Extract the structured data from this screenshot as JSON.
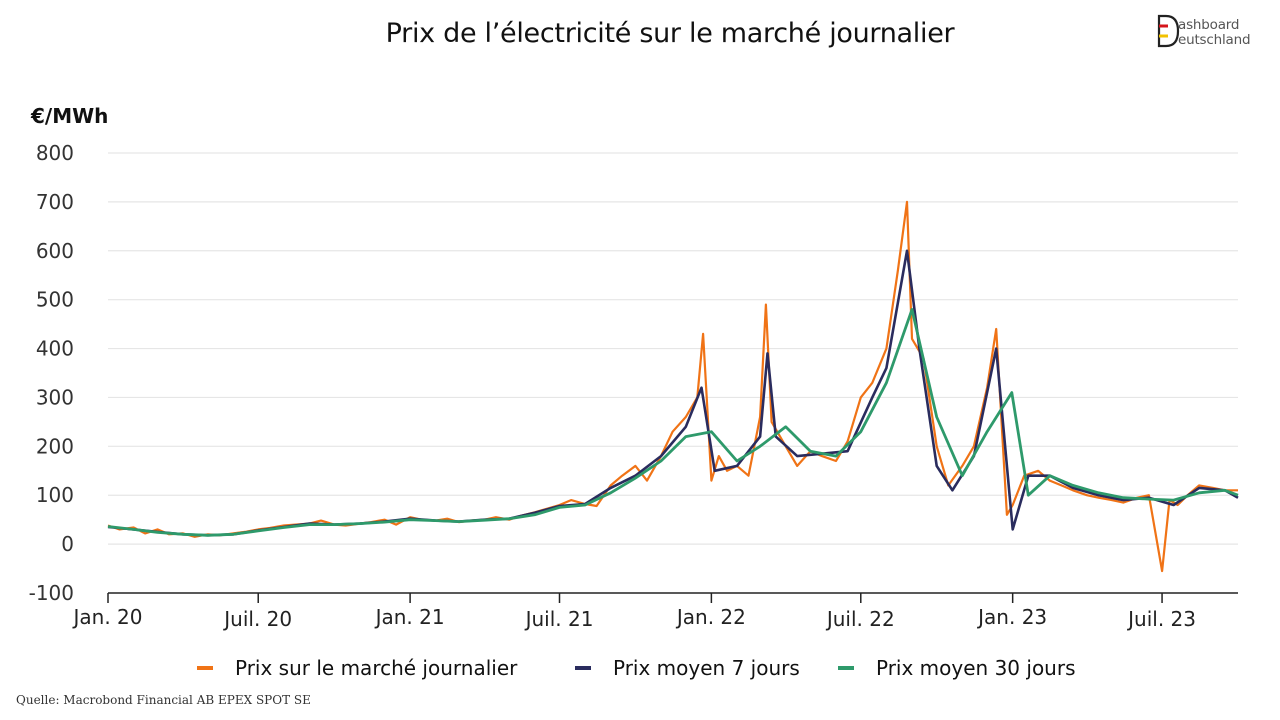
{
  "title": "Prix de l’électricité sur le marché journalier",
  "logo": {
    "line1": "ashboard",
    "line2": "eutschland",
    "letter": "D"
  },
  "source": "Quelle: Macrobond Financial AB EPEX SPOT SE",
  "colors": {
    "daily": "#f07316",
    "avg7": "#2a2c5e",
    "avg30": "#2e9a6b",
    "grid": "#e6e6e6",
    "axis": "#222222"
  },
  "chart_data": {
    "type": "line",
    "title": "Prix de l’électricité sur le marché journalier",
    "ylabel": "€/MWh",
    "xlabel": "",
    "ylim": [
      -100,
      800
    ],
    "yticks": [
      -100,
      0,
      100,
      200,
      300,
      400,
      500,
      600,
      700,
      800
    ],
    "xlim": [
      "2020-01",
      "2023-10"
    ],
    "x_tick_labels": [
      {
        "date": "2020-01",
        "label": "Jan. 20"
      },
      {
        "date": "2020-07",
        "label": "Juil. 20"
      },
      {
        "date": "2021-01",
        "label": "Jan. 21"
      },
      {
        "date": "2021-07",
        "label": "Juil. 21"
      },
      {
        "date": "2022-01",
        "label": "Jan. 22"
      },
      {
        "date": "2022-07",
        "label": "Juil. 22"
      },
      {
        "date": "2023-01",
        "label": "Jan. 23"
      },
      {
        "date": "2023-07",
        "label": "Juil. 23"
      }
    ],
    "legend_position": "bottom",
    "series": [
      {
        "name": "Prix sur le marché journalier",
        "key": "daily",
        "points": [
          [
            "2020-01-01",
            38
          ],
          [
            "2020-01-15",
            30
          ],
          [
            "2020-02-01",
            34
          ],
          [
            "2020-02-15",
            22
          ],
          [
            "2020-03-01",
            30
          ],
          [
            "2020-03-15",
            20
          ],
          [
            "2020-04-01",
            22
          ],
          [
            "2020-04-15",
            15
          ],
          [
            "2020-05-01",
            20
          ],
          [
            "2020-05-15",
            18
          ],
          [
            "2020-06-01",
            22
          ],
          [
            "2020-06-15",
            25
          ],
          [
            "2020-07-01",
            30
          ],
          [
            "2020-07-15",
            33
          ],
          [
            "2020-08-01",
            38
          ],
          [
            "2020-08-15",
            40
          ],
          [
            "2020-09-01",
            42
          ],
          [
            "2020-09-15",
            48
          ],
          [
            "2020-10-01",
            40
          ],
          [
            "2020-10-15",
            38
          ],
          [
            "2020-11-01",
            42
          ],
          [
            "2020-11-15",
            45
          ],
          [
            "2020-12-01",
            50
          ],
          [
            "2020-12-15",
            40
          ],
          [
            "2021-01-01",
            55
          ],
          [
            "2021-01-15",
            50
          ],
          [
            "2021-02-01",
            48
          ],
          [
            "2021-02-15",
            52
          ],
          [
            "2021-03-01",
            45
          ],
          [
            "2021-03-15",
            48
          ],
          [
            "2021-04-01",
            50
          ],
          [
            "2021-04-15",
            55
          ],
          [
            "2021-05-01",
            50
          ],
          [
            "2021-05-15",
            58
          ],
          [
            "2021-06-01",
            65
          ],
          [
            "2021-06-15",
            72
          ],
          [
            "2021-07-01",
            80
          ],
          [
            "2021-07-15",
            90
          ],
          [
            "2021-08-01",
            82
          ],
          [
            "2021-08-15",
            78
          ],
          [
            "2021-09-01",
            120
          ],
          [
            "2021-09-15",
            140
          ],
          [
            "2021-10-01",
            160
          ],
          [
            "2021-10-15",
            130
          ],
          [
            "2021-11-01",
            180
          ],
          [
            "2021-11-15",
            230
          ],
          [
            "2021-12-01",
            260
          ],
          [
            "2021-12-15",
            300
          ],
          [
            "2021-12-22",
            430
          ],
          [
            "2022-01-01",
            130
          ],
          [
            "2022-01-10",
            180
          ],
          [
            "2022-01-20",
            150
          ],
          [
            "2022-02-01",
            160
          ],
          [
            "2022-02-15",
            140
          ],
          [
            "2022-03-01",
            260
          ],
          [
            "2022-03-08",
            490
          ],
          [
            "2022-03-15",
            250
          ],
          [
            "2022-04-01",
            200
          ],
          [
            "2022-04-15",
            160
          ],
          [
            "2022-05-01",
            190
          ],
          [
            "2022-05-15",
            180
          ],
          [
            "2022-06-01",
            170
          ],
          [
            "2022-06-15",
            210
          ],
          [
            "2022-07-01",
            300
          ],
          [
            "2022-07-15",
            330
          ],
          [
            "2022-08-01",
            400
          ],
          [
            "2022-08-15",
            560
          ],
          [
            "2022-08-26",
            700
          ],
          [
            "2022-09-01",
            420
          ],
          [
            "2022-09-15",
            380
          ],
          [
            "2022-10-01",
            200
          ],
          [
            "2022-10-15",
            120
          ],
          [
            "2022-11-01",
            160
          ],
          [
            "2022-11-15",
            200
          ],
          [
            "2022-12-01",
            320
          ],
          [
            "2022-12-12",
            440
          ],
          [
            "2022-12-25",
            60
          ],
          [
            "2023-01-01",
            80
          ],
          [
            "2023-01-15",
            140
          ],
          [
            "2023-02-01",
            150
          ],
          [
            "2023-02-15",
            130
          ],
          [
            "2023-03-01",
            120
          ],
          [
            "2023-03-15",
            110
          ],
          [
            "2023-04-01",
            100
          ],
          [
            "2023-04-15",
            95
          ],
          [
            "2023-05-01",
            90
          ],
          [
            "2023-05-15",
            85
          ],
          [
            "2023-06-01",
            95
          ],
          [
            "2023-06-15",
            100
          ],
          [
            "2023-07-01",
            -55
          ],
          [
            "2023-07-10",
            90
          ],
          [
            "2023-07-20",
            80
          ],
          [
            "2023-08-01",
            100
          ],
          [
            "2023-08-15",
            120
          ],
          [
            "2023-09-01",
            115
          ],
          [
            "2023-09-15",
            110
          ],
          [
            "2023-10-01",
            110
          ]
        ]
      },
      {
        "name": "Prix moyen 7 jours",
        "key": "avg7",
        "points": [
          [
            "2020-01-01",
            35
          ],
          [
            "2020-02-01",
            30
          ],
          [
            "2020-03-01",
            25
          ],
          [
            "2020-04-01",
            20
          ],
          [
            "2020-05-01",
            18
          ],
          [
            "2020-06-01",
            20
          ],
          [
            "2020-07-01",
            28
          ],
          [
            "2020-08-01",
            35
          ],
          [
            "2020-09-01",
            42
          ],
          [
            "2020-10-01",
            40
          ],
          [
            "2020-11-01",
            42
          ],
          [
            "2020-12-01",
            46
          ],
          [
            "2021-01-01",
            52
          ],
          [
            "2021-02-01",
            48
          ],
          [
            "2021-03-01",
            46
          ],
          [
            "2021-04-01",
            50
          ],
          [
            "2021-05-01",
            52
          ],
          [
            "2021-06-01",
            64
          ],
          [
            "2021-07-01",
            78
          ],
          [
            "2021-08-01",
            82
          ],
          [
            "2021-09-01",
            115
          ],
          [
            "2021-10-01",
            140
          ],
          [
            "2021-11-01",
            180
          ],
          [
            "2021-12-01",
            240
          ],
          [
            "2021-12-20",
            320
          ],
          [
            "2022-01-05",
            150
          ],
          [
            "2022-02-01",
            160
          ],
          [
            "2022-03-01",
            220
          ],
          [
            "2022-03-10",
            390
          ],
          [
            "2022-03-20",
            220
          ],
          [
            "2022-04-15",
            180
          ],
          [
            "2022-05-15",
            185
          ],
          [
            "2022-06-15",
            190
          ],
          [
            "2022-07-15",
            300
          ],
          [
            "2022-08-01",
            360
          ],
          [
            "2022-08-26",
            600
          ],
          [
            "2022-09-10",
            400
          ],
          [
            "2022-10-01",
            160
          ],
          [
            "2022-10-20",
            110
          ],
          [
            "2022-11-15",
            180
          ],
          [
            "2022-12-12",
            400
          ],
          [
            "2023-01-01",
            30
          ],
          [
            "2023-01-20",
            140
          ],
          [
            "2023-02-15",
            140
          ],
          [
            "2023-03-15",
            115
          ],
          [
            "2023-04-15",
            100
          ],
          [
            "2023-05-15",
            90
          ],
          [
            "2023-06-15",
            95
          ],
          [
            "2023-07-15",
            80
          ],
          [
            "2023-08-15",
            115
          ],
          [
            "2023-09-15",
            110
          ],
          [
            "2023-10-01",
            95
          ]
        ]
      },
      {
        "name": "Prix moyen 30 jours",
        "key": "avg30",
        "points": [
          [
            "2020-01-01",
            36
          ],
          [
            "2020-02-01",
            30
          ],
          [
            "2020-03-01",
            24
          ],
          [
            "2020-04-01",
            20
          ],
          [
            "2020-05-01",
            18
          ],
          [
            "2020-06-01",
            20
          ],
          [
            "2020-07-01",
            27
          ],
          [
            "2020-08-01",
            34
          ],
          [
            "2020-09-01",
            40
          ],
          [
            "2020-10-01",
            40
          ],
          [
            "2020-11-01",
            42
          ],
          [
            "2020-12-01",
            45
          ],
          [
            "2021-01-01",
            50
          ],
          [
            "2021-02-01",
            48
          ],
          [
            "2021-03-01",
            46
          ],
          [
            "2021-04-01",
            49
          ],
          [
            "2021-05-01",
            52
          ],
          [
            "2021-06-01",
            60
          ],
          [
            "2021-07-01",
            75
          ],
          [
            "2021-08-01",
            80
          ],
          [
            "2021-09-01",
            105
          ],
          [
            "2021-10-01",
            135
          ],
          [
            "2021-11-01",
            170
          ],
          [
            "2021-12-01",
            220
          ],
          [
            "2022-01-01",
            230
          ],
          [
            "2022-02-01",
            170
          ],
          [
            "2022-03-01",
            200
          ],
          [
            "2022-04-01",
            240
          ],
          [
            "2022-05-01",
            190
          ],
          [
            "2022-06-01",
            180
          ],
          [
            "2022-07-01",
            230
          ],
          [
            "2022-08-01",
            330
          ],
          [
            "2022-09-01",
            480
          ],
          [
            "2022-10-01",
            260
          ],
          [
            "2022-11-01",
            140
          ],
          [
            "2022-12-01",
            230
          ],
          [
            "2022-12-31",
            310
          ],
          [
            "2023-01-20",
            100
          ],
          [
            "2023-02-15",
            140
          ],
          [
            "2023-03-15",
            120
          ],
          [
            "2023-04-15",
            105
          ],
          [
            "2023-05-15",
            95
          ],
          [
            "2023-06-15",
            92
          ],
          [
            "2023-07-15",
            90
          ],
          [
            "2023-08-15",
            105
          ],
          [
            "2023-09-15",
            110
          ],
          [
            "2023-10-01",
            100
          ]
        ]
      }
    ]
  }
}
